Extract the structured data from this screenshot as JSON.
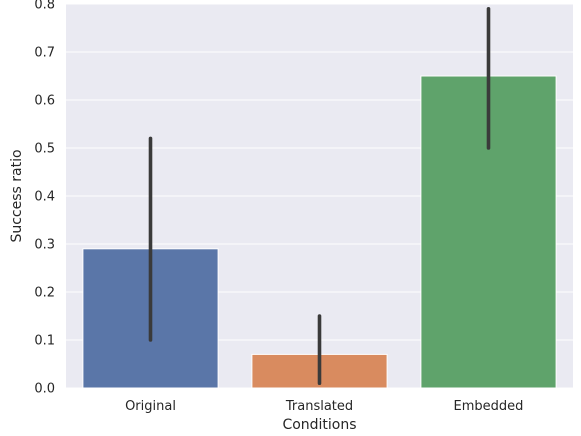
{
  "chart_data": {
    "type": "bar",
    "title": "",
    "xlabel": "Conditions",
    "ylabel": "Success ratio",
    "ylim": [
      0,
      0.8
    ],
    "yticks": [
      "0.0",
      "0.1",
      "0.2",
      "0.3",
      "0.4",
      "0.5",
      "0.6",
      "0.7",
      "0.8"
    ],
    "categories": [
      "Original",
      "Translated",
      "Embedded"
    ],
    "values": [
      0.29,
      0.07,
      0.65
    ],
    "error_bars": [
      {
        "low": 0.1,
        "high": 0.52
      },
      {
        "low": 0.01,
        "high": 0.15
      },
      {
        "low": 0.5,
        "high": 0.79
      }
    ],
    "colors": [
      "#5a76a8",
      "#d98b5f",
      "#5fa36b"
    ],
    "grid": true,
    "background": "#eaeaf2",
    "errorbar_color": "#3a3a3a"
  }
}
